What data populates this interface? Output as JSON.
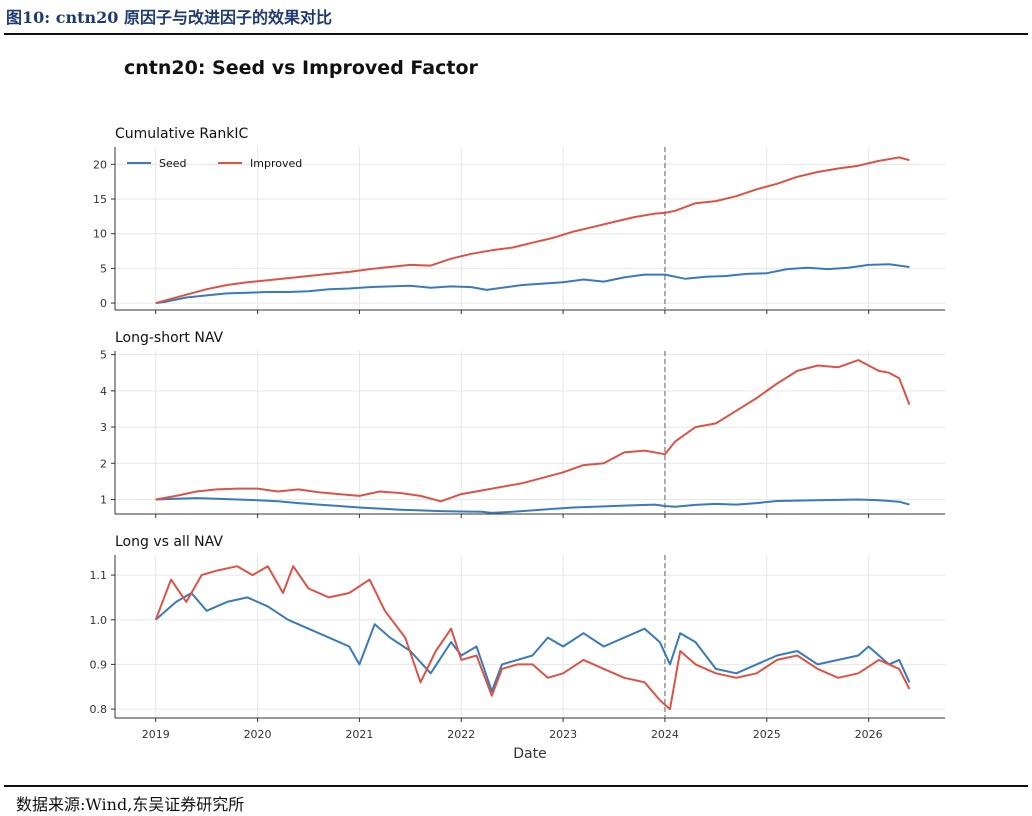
{
  "header": {
    "caption": "图10:  cntn20 原因子与改进因子的效果对比"
  },
  "footer": {
    "source": "数据来源:Wind,东吴证券研究所"
  },
  "chart_data": {
    "type": "line",
    "suptitle": "cntn20: Seed vs Improved Factor",
    "xlabel": "Date",
    "x_ticks": [
      "2019",
      "2020",
      "2021",
      "2022",
      "2023",
      "2024",
      "2025",
      "2026"
    ],
    "x_range": [
      2018.6,
      2026.75
    ],
    "split_line_x": 2024.0,
    "legend": {
      "placement": "top-left",
      "entries": [
        "Seed",
        "Improved"
      ]
    },
    "colors": {
      "seed": "#3a7ab8",
      "improved": "#d95446",
      "split": "#8c8c8c"
    },
    "grid": true,
    "panels": [
      {
        "title": "Cumulative RankIC",
        "ylim": [
          -1,
          22.5
        ],
        "yticks": [
          0,
          5,
          10,
          15,
          20
        ],
        "tick_labels": [
          "0",
          "5",
          "10",
          "15",
          "20"
        ],
        "series": [
          {
            "name": "Seed",
            "x": [
              2019.0,
              2019.1,
              2019.3,
              2019.5,
              2019.7,
              2019.9,
              2020.1,
              2020.3,
              2020.5,
              2020.7,
              2020.9,
              2021.1,
              2021.3,
              2021.5,
              2021.7,
              2021.9,
              2022.1,
              2022.25,
              2022.4,
              2022.6,
              2022.8,
              2023.0,
              2023.2,
              2023.4,
              2023.6,
              2023.8,
              2024.0,
              2024.2,
              2024.4,
              2024.6,
              2024.8,
              2025.0,
              2025.2,
              2025.4,
              2025.6,
              2025.8,
              2026.0,
              2026.2,
              2026.4
            ],
            "values": [
              0.0,
              0.2,
              0.8,
              1.1,
              1.4,
              1.5,
              1.6,
              1.6,
              1.7,
              2.0,
              2.1,
              2.3,
              2.4,
              2.5,
              2.2,
              2.4,
              2.3,
              1.9,
              2.2,
              2.6,
              2.8,
              3.0,
              3.4,
              3.1,
              3.7,
              4.1,
              4.1,
              3.5,
              3.8,
              3.9,
              4.2,
              4.3,
              4.9,
              5.1,
              4.9,
              5.1,
              5.5,
              5.6,
              5.2
            ]
          },
          {
            "name": "Improved",
            "x": [
              2019.0,
              2019.1,
              2019.3,
              2019.5,
              2019.7,
              2019.9,
              2020.1,
              2020.3,
              2020.5,
              2020.7,
              2020.9,
              2021.1,
              2021.3,
              2021.5,
              2021.7,
              2021.9,
              2022.1,
              2022.3,
              2022.5,
              2022.7,
              2022.9,
              2023.1,
              2023.3,
              2023.5,
              2023.7,
              2023.9,
              2024.0,
              2024.1,
              2024.3,
              2024.5,
              2024.7,
              2024.9,
              2025.1,
              2025.3,
              2025.5,
              2025.7,
              2025.9,
              2026.1,
              2026.3,
              2026.4
            ],
            "values": [
              0.0,
              0.4,
              1.2,
              2.0,
              2.6,
              3.0,
              3.3,
              3.6,
              3.9,
              4.2,
              4.5,
              4.9,
              5.2,
              5.5,
              5.4,
              6.4,
              7.1,
              7.6,
              8.0,
              8.7,
              9.4,
              10.3,
              11.0,
              11.7,
              12.4,
              12.9,
              13.0,
              13.3,
              14.4,
              14.7,
              15.4,
              16.4,
              17.2,
              18.2,
              18.9,
              19.4,
              19.8,
              20.5,
              21.0,
              20.6
            ]
          }
        ]
      },
      {
        "title": "Long-short NAV",
        "ylim": [
          0.6,
          5.1
        ],
        "yticks": [
          1,
          2,
          3,
          4,
          5
        ],
        "tick_labels": [
          "1",
          "2",
          "3",
          "4",
          "5"
        ],
        "series": [
          {
            "name": "Seed",
            "x": [
              2019.0,
              2019.2,
              2019.4,
              2019.6,
              2019.8,
              2020.0,
              2020.2,
              2020.4,
              2020.6,
              2020.8,
              2021.0,
              2021.2,
              2021.4,
              2021.6,
              2021.8,
              2022.0,
              2022.2,
              2022.3,
              2022.5,
              2022.7,
              2022.9,
              2023.1,
              2023.3,
              2023.5,
              2023.7,
              2023.9,
              2024.0,
              2024.1,
              2024.3,
              2024.5,
              2024.7,
              2024.9,
              2025.1,
              2025.3,
              2025.5,
              2025.7,
              2025.9,
              2026.1,
              2026.3,
              2026.4
            ],
            "values": [
              1.0,
              1.02,
              1.04,
              1.02,
              1.0,
              0.98,
              0.95,
              0.9,
              0.86,
              0.82,
              0.78,
              0.75,
              0.72,
              0.7,
              0.68,
              0.67,
              0.66,
              0.63,
              0.66,
              0.7,
              0.74,
              0.78,
              0.8,
              0.82,
              0.84,
              0.86,
              0.82,
              0.8,
              0.85,
              0.88,
              0.86,
              0.9,
              0.96,
              0.97,
              0.98,
              0.99,
              1.0,
              0.98,
              0.94,
              0.86
            ]
          },
          {
            "name": "Improved",
            "x": [
              2019.0,
              2019.2,
              2019.4,
              2019.6,
              2019.8,
              2020.0,
              2020.2,
              2020.4,
              2020.6,
              2020.8,
              2021.0,
              2021.2,
              2021.4,
              2021.6,
              2021.8,
              2022.0,
              2022.2,
              2022.4,
              2022.6,
              2022.8,
              2023.0,
              2023.2,
              2023.4,
              2023.6,
              2023.8,
              2024.0,
              2024.1,
              2024.3,
              2024.5,
              2024.7,
              2024.9,
              2025.1,
              2025.3,
              2025.5,
              2025.7,
              2025.9,
              2026.0,
              2026.1,
              2026.2,
              2026.3,
              2026.4
            ],
            "values": [
              1.0,
              1.1,
              1.22,
              1.28,
              1.3,
              1.3,
              1.22,
              1.28,
              1.2,
              1.15,
              1.1,
              1.22,
              1.18,
              1.1,
              0.95,
              1.15,
              1.25,
              1.35,
              1.45,
              1.6,
              1.75,
              1.95,
              2.0,
              2.3,
              2.35,
              2.25,
              2.6,
              3.0,
              3.1,
              3.45,
              3.8,
              4.2,
              4.55,
              4.7,
              4.65,
              4.85,
              4.7,
              4.55,
              4.5,
              4.35,
              3.62
            ]
          }
        ]
      },
      {
        "title": "Long vs all NAV",
        "ylim": [
          0.78,
          1.145
        ],
        "yticks": [
          0.8,
          0.9,
          1.0,
          1.1
        ],
        "tick_labels": [
          "0.8",
          "0.9",
          "1.0",
          "1.1"
        ],
        "series": [
          {
            "name": "Seed",
            "x": [
              2019.0,
              2019.1,
              2019.2,
              2019.35,
              2019.5,
              2019.7,
              2019.9,
              2020.1,
              2020.3,
              2020.5,
              2020.7,
              2020.9,
              2021.0,
              2021.15,
              2021.3,
              2021.5,
              2021.7,
              2021.9,
              2022.0,
              2022.15,
              2022.3,
              2022.4,
              2022.55,
              2022.7,
              2022.85,
              2023.0,
              2023.2,
              2023.4,
              2023.6,
              2023.8,
              2023.95,
              2024.05,
              2024.15,
              2024.3,
              2024.5,
              2024.7,
              2024.9,
              2025.1,
              2025.3,
              2025.5,
              2025.7,
              2025.9,
              2026.0,
              2026.2,
              2026.3,
              2026.4
            ],
            "values": [
              1.0,
              1.02,
              1.04,
              1.06,
              1.02,
              1.04,
              1.05,
              1.03,
              1.0,
              0.98,
              0.96,
              0.94,
              0.9,
              0.99,
              0.96,
              0.93,
              0.88,
              0.95,
              0.92,
              0.94,
              0.84,
              0.9,
              0.91,
              0.92,
              0.96,
              0.94,
              0.97,
              0.94,
              0.96,
              0.98,
              0.95,
              0.9,
              0.97,
              0.95,
              0.89,
              0.88,
              0.9,
              0.92,
              0.93,
              0.9,
              0.91,
              0.92,
              0.94,
              0.9,
              0.91,
              0.86
            ]
          },
          {
            "name": "Improved",
            "x": [
              2019.0,
              2019.15,
              2019.3,
              2019.45,
              2019.6,
              2019.8,
              2019.95,
              2020.1,
              2020.25,
              2020.35,
              2020.5,
              2020.7,
              2020.9,
              2021.1,
              2021.25,
              2021.45,
              2021.6,
              2021.75,
              2021.9,
              2022.0,
              2022.15,
              2022.3,
              2022.4,
              2022.55,
              2022.7,
              2022.85,
              2023.0,
              2023.2,
              2023.4,
              2023.6,
              2023.8,
              2023.95,
              2024.05,
              2024.15,
              2024.3,
              2024.5,
              2024.7,
              2024.9,
              2025.1,
              2025.3,
              2025.5,
              2025.7,
              2025.9,
              2026.1,
              2026.3,
              2026.4
            ],
            "values": [
              1.0,
              1.09,
              1.04,
              1.1,
              1.11,
              1.12,
              1.1,
              1.12,
              1.06,
              1.12,
              1.07,
              1.05,
              1.06,
              1.09,
              1.02,
              0.96,
              0.86,
              0.93,
              0.98,
              0.91,
              0.92,
              0.83,
              0.89,
              0.9,
              0.9,
              0.87,
              0.88,
              0.91,
              0.89,
              0.87,
              0.86,
              0.82,
              0.8,
              0.93,
              0.9,
              0.88,
              0.87,
              0.88,
              0.91,
              0.92,
              0.89,
              0.87,
              0.88,
              0.91,
              0.89,
              0.845
            ]
          }
        ]
      }
    ]
  }
}
